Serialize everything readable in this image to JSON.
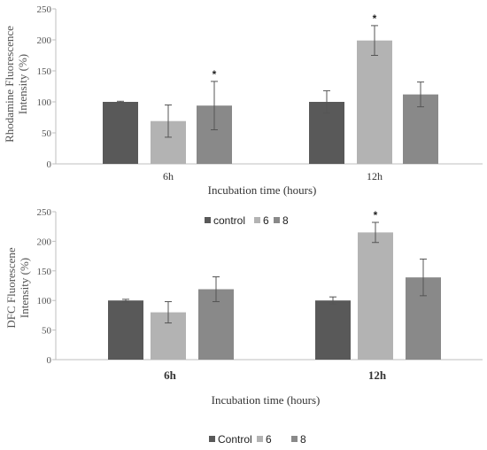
{
  "chart_data": [
    {
      "type": "bar",
      "categories": [
        "6h",
        "12h"
      ],
      "series": [
        {
          "values": [
            100,
            100
          ],
          "errors": [
            1,
            18
          ],
          "color": "#595959",
          "star": [
            false,
            false
          ]
        },
        {
          "values": [
            69,
            199
          ],
          "errors": [
            26,
            24
          ],
          "color": "#b3b3b3",
          "star": [
            false,
            true
          ]
        },
        {
          "values": [
            94,
            112
          ],
          "errors": [
            39,
            20
          ],
          "color": "#898989",
          "star": [
            true,
            false
          ]
        }
      ],
      "xlabel": "Incubation  time  (hours)",
      "ylabel_lines": [
        "Rhodamine  Fluorescence",
        "Intensity  (%)"
      ],
      "ylim": [
        0,
        250
      ],
      "yticks": [
        "0",
        "50",
        "100",
        "150",
        "200",
        "250"
      ],
      "star_symbol": "*",
      "grid": false
    },
    {
      "type": "bar",
      "categories": [
        "6h",
        "12h"
      ],
      "series": [
        {
          "name": "control",
          "values": [
            100,
            100
          ],
          "errors": [
            2,
            6
          ],
          "color": "#595959",
          "star": [
            false,
            false
          ]
        },
        {
          "name": "6",
          "values": [
            80,
            215
          ],
          "errors": [
            18,
            17
          ],
          "color": "#b3b3b3",
          "star": [
            false,
            true
          ]
        },
        {
          "name": "8",
          "values": [
            119,
            139
          ],
          "errors": [
            21,
            31
          ],
          "color": "#898989",
          "star": [
            false,
            false
          ]
        }
      ],
      "xlabel": "Incubation  time  (hours)",
      "ylabel_lines": [
        "DFC Fluorescene",
        "Intensity  (%)"
      ],
      "ylim": [
        0,
        250
      ],
      "yticks": [
        "0",
        "50",
        "100",
        "150",
        "200",
        "250"
      ],
      "star_symbol": "*",
      "legend_position": "top-center",
      "grid": false
    }
  ],
  "bottom_legend": {
    "entries": [
      {
        "label": "Control",
        "color": "#595959"
      },
      {
        "label": "6",
        "color": "#b3b3b3"
      },
      {
        "label": "8",
        "color": "#898989"
      }
    ]
  }
}
